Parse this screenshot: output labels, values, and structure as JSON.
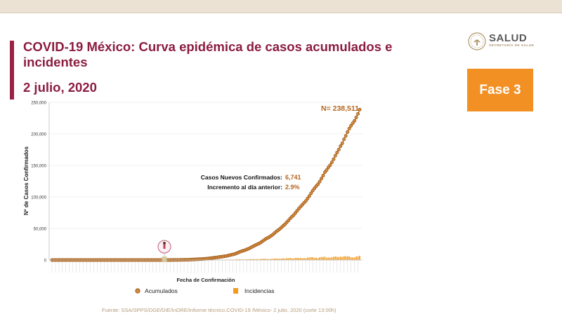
{
  "header": {
    "title": "COVID-19 México: Curva epidémica de casos acumulados e incidentes",
    "date": "2 julio, 2020",
    "logo_text": "SALUD",
    "logo_subtext": "SECRETARÍA DE SALUD",
    "phase_label": "Fase 3"
  },
  "footer": {
    "source": "Fuente: SSA/SPPS/DGE/DIE/InDRE/Informe técnico.COVID-19 /México- 2 julio, 2020 (corte 13:00h)"
  },
  "colors": {
    "accent": "#9b2247",
    "title": "#8c1d40",
    "accumulated": "#b5651d",
    "incidence": "#f29b1f",
    "phase_badge": "#f39024"
  },
  "chart_data": {
    "type": "line",
    "xlabel": "Fecha de Confirmación",
    "ylabel": "Nº de Casos Confirmados",
    "ylim": [
      0,
      250000
    ],
    "yticks": [
      "0",
      "50,000",
      "100,000",
      "150,000",
      "200,000",
      "250,000"
    ],
    "grid": true,
    "legend_position": "bottom",
    "annotations": {
      "total": "N= 238,511",
      "new_cases_label": "Casos Nuevos Confirmados:",
      "new_cases_value": "6,741",
      "increase_label": "Incremento al día anterior:",
      "increase_value": "2.9%"
    },
    "series": [
      {
        "name": "Acumulados",
        "type": "scatter-line",
        "values": [
          0,
          0,
          0,
          0,
          0,
          0,
          0,
          0,
          0,
          0,
          0,
          0,
          0,
          0,
          0,
          0,
          0,
          0,
          0,
          0,
          0,
          0,
          0,
          0,
          0,
          0,
          0,
          0,
          0,
          0,
          0,
          0,
          0,
          0,
          0,
          0,
          0,
          0,
          0,
          0,
          0,
          0,
          0,
          0,
          0,
          0,
          0,
          0,
          0,
          0,
          0,
          0,
          0,
          0,
          0,
          0,
          0,
          0,
          0,
          0,
          1,
          2,
          4,
          7,
          11,
          16,
          26,
          41,
          53,
          82,
          93,
          118,
          164,
          203,
          251,
          316,
          367,
          405,
          475,
          585,
          717,
          848,
          993,
          1094,
          1215,
          1378,
          1510,
          1688,
          1890,
          2143,
          2439,
          2785,
          3181,
          3441,
          3844,
          4219,
          4661,
          5014,
          5399,
          5847,
          6297,
          6875,
          7497,
          8261,
          8772,
          9501,
          10544,
          11633,
          12872,
          13842,
          14677,
          15529,
          16752,
          17799,
          19224,
          20739,
          22088,
          23471,
          24905,
          26025,
          27634,
          29616,
          31522,
          33460,
          35022,
          36327,
          38324,
          40186,
          42595,
          45032,
          47144,
          49219,
          51633,
          54346,
          56594,
          59567,
          62527,
          65856,
          68620,
          71105,
          74560,
          78023,
          81400,
          84627,
          87512,
          90664,
          93435,
          97326,
          101238,
          105680,
          110026,
          113619,
          117103,
          120102,
          124301,
          129184,
          133974,
          139196,
          142690,
          146837,
          150264,
          154863,
          159793,
          165455,
          170485,
          175202,
          180545,
          185122,
          191410,
          196847,
          202951,
          208392,
          212802,
          216852,
          220657,
          226089,
          231770,
          238511
        ]
      },
      {
        "name": "Incidencias",
        "type": "bar",
        "values": [
          0,
          0,
          0,
          0,
          0,
          0,
          0,
          0,
          0,
          0,
          0,
          0,
          0,
          0,
          0,
          0,
          0,
          0,
          0,
          0,
          0,
          0,
          0,
          0,
          0,
          0,
          0,
          0,
          0,
          0,
          0,
          0,
          0,
          0,
          0,
          0,
          0,
          0,
          0,
          0,
          0,
          0,
          0,
          0,
          0,
          0,
          0,
          0,
          0,
          0,
          0,
          0,
          0,
          0,
          0,
          0,
          0,
          0,
          0,
          0,
          1,
          1,
          2,
          3,
          4,
          5,
          10,
          15,
          12,
          29,
          11,
          25,
          46,
          39,
          48,
          65,
          51,
          38,
          70,
          110,
          132,
          131,
          145,
          101,
          121,
          163,
          132,
          178,
          202,
          253,
          296,
          346,
          396,
          260,
          403,
          375,
          442,
          353,
          385,
          448,
          450,
          578,
          622,
          764,
          511,
          729,
          1043,
          1089,
          1239,
          970,
          835,
          852,
          1223,
          1047,
          1425,
          1515,
          1349,
          1383,
          1434,
          1120,
          1609,
          1982,
          1906,
          1938,
          1562,
          1305,
          1997,
          1862,
          2409,
          2437,
          2112,
          2075,
          2414,
          2713,
          2248,
          2973,
          2960,
          3329,
          2764,
          2485,
          3455,
          3463,
          3377,
          3227,
          2885,
          3152,
          2771,
          3891,
          3912,
          4442,
          4346,
          3593,
          3484,
          2999,
          4199,
          4883,
          4790,
          5222,
          3494,
          4147,
          3427,
          4599,
          4930,
          5662,
          5030,
          4717,
          5343,
          4577,
          6288,
          5437,
          6104,
          5441,
          4410,
          4050,
          3805,
          5432,
          5681,
          6741
        ]
      }
    ]
  }
}
